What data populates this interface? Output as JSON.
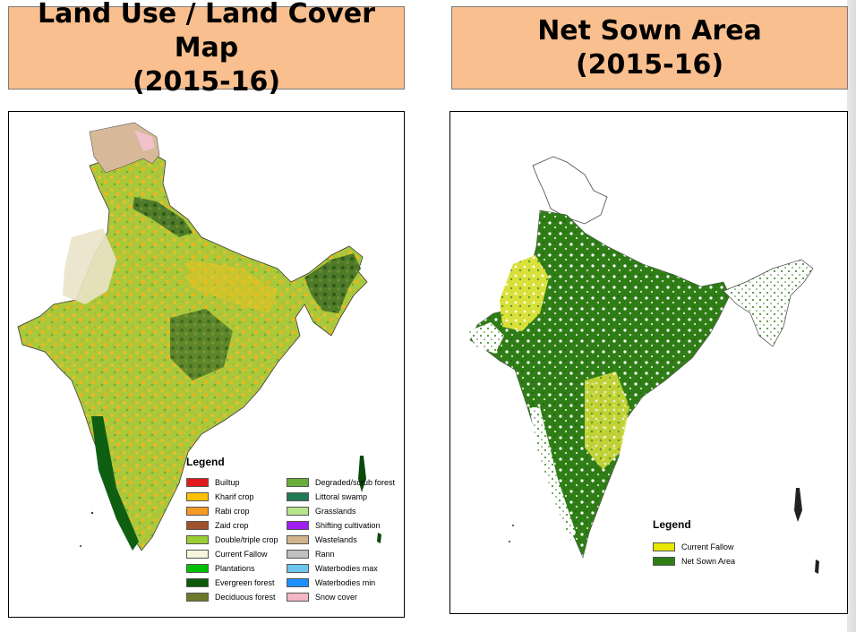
{
  "panels": {
    "left": {
      "title_line1": "Land Use / Land Cover Map",
      "title_line2": "(2015-16)",
      "legend_title": "Legend",
      "legend_col1": [
        {
          "label": "Builtup",
          "color": "#e31a1c"
        },
        {
          "label": "Kharif crop",
          "color": "#ffc000"
        },
        {
          "label": "Rabi crop",
          "color": "#f59a23"
        },
        {
          "label": "Zaid crop",
          "color": "#a0522d"
        },
        {
          "label": "Double/triple crop",
          "color": "#9acd32"
        },
        {
          "label": "Current Fallow",
          "color": "#f7f5dc"
        },
        {
          "label": "Plantations",
          "color": "#00c000"
        },
        {
          "label": "Evergreen forest",
          "color": "#0b5a0b"
        },
        {
          "label": "Deciduous forest",
          "color": "#6b7a2a"
        }
      ],
      "legend_col2": [
        {
          "label": "Degraded/scrub forest",
          "color": "#6aae3a"
        },
        {
          "label": "Littoral swamp",
          "color": "#1f7a55"
        },
        {
          "label": "Grasslands",
          "color": "#b8e58c"
        },
        {
          "label": "Shifting cultivation",
          "color": "#a020f0"
        },
        {
          "label": "Wastelands",
          "color": "#d2b48c"
        },
        {
          "label": "Rann",
          "color": "#c0c0c0"
        },
        {
          "label": "Waterbodies max",
          "color": "#6ec6f0"
        },
        {
          "label": "Waterbodies min",
          "color": "#1e90ff"
        },
        {
          "label": "Snow cover",
          "color": "#f4b6c2"
        }
      ]
    },
    "right": {
      "title_line1": "Net Sown Area",
      "title_line2": "(2015-16)",
      "legend_title": "Legend",
      "legend_items": [
        {
          "label": "Current Fallow",
          "color": "#e6e600"
        },
        {
          "label": "Net Sown Area",
          "color": "#2e7d14"
        }
      ]
    }
  }
}
